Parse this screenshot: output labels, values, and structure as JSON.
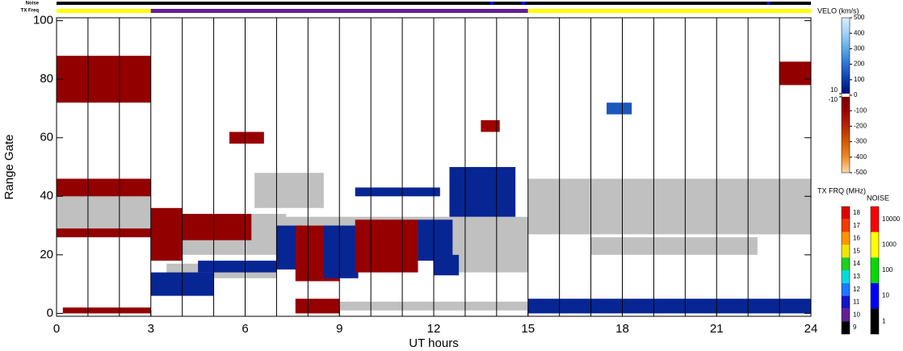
{
  "chart_data": {
    "type": "range-time",
    "xlabel": "UT hours",
    "ylabel": "Range Gate",
    "xlim": [
      0,
      24
    ],
    "xticks": [
      0,
      3,
      6,
      9,
      12,
      15,
      18,
      21,
      24
    ],
    "x_grid_step": 1,
    "ylim": [
      -1,
      101
    ],
    "yticks": [
      0,
      20,
      40,
      60,
      80,
      100
    ],
    "noise_bar": {
      "label": "Noise",
      "segments": [
        {
          "start": 0,
          "end": 24,
          "value": 1
        },
        {
          "start": 13.8,
          "end": 13.9,
          "value": 10
        },
        {
          "start": 14.8,
          "end": 14.9,
          "value": 10
        },
        {
          "start": 22.6,
          "end": 22.7,
          "value": 10
        }
      ]
    },
    "tx_bar": {
      "label": "TX Freq",
      "segments": [
        {
          "start": 0,
          "end": 3,
          "value": 16
        },
        {
          "start": 3,
          "end": 15,
          "value": 10
        },
        {
          "start": 15,
          "end": 24,
          "value": 16
        }
      ]
    },
    "velocity_scale": {
      "title": "VELO (km/s)",
      "ticks": [
        500,
        400,
        300,
        200,
        100,
        0,
        -100,
        -200,
        -300,
        -400,
        -500
      ],
      "inner_ticks": [
        10,
        -10
      ],
      "stops": [
        {
          "value": 500,
          "color": "#dcefff"
        },
        {
          "value": 400,
          "color": "#a3d1f5"
        },
        {
          "value": 300,
          "color": "#5ea9e6"
        },
        {
          "value": 200,
          "color": "#2a72d2"
        },
        {
          "value": 100,
          "color": "#0c3ca8"
        },
        {
          "value": 10,
          "color": "#000a7a"
        },
        {
          "value": 10,
          "color": "#ffffff"
        },
        {
          "value": -10,
          "color": "#ffffff"
        },
        {
          "value": -10,
          "color": "#7a0000"
        },
        {
          "value": -100,
          "color": "#9a0000"
        },
        {
          "value": -200,
          "color": "#b42800"
        },
        {
          "value": -300,
          "color": "#d25a00"
        },
        {
          "value": -400,
          "color": "#ee8c28"
        },
        {
          "value": -500,
          "color": "#fcd9b0"
        }
      ]
    },
    "tx_scale": {
      "title": "TX FRQ (MHz)",
      "ticks": [
        18,
        17,
        16,
        15,
        14,
        13,
        12,
        11,
        10,
        9
      ],
      "colors": [
        "#e00000",
        "#f03c00",
        "#ff9600",
        "#f0e600",
        "#1ed21e",
        "#00dcdc",
        "#1e78ff",
        "#1414c8",
        "#641e96",
        "#000000"
      ]
    },
    "noise_scale": {
      "title": "NOISE",
      "ticks": [
        10000,
        1000,
        100,
        10,
        1
      ],
      "colors": [
        "#ff0000",
        "#ffff00",
        "#00dc00",
        "#0000ff",
        "#000000"
      ]
    },
    "ground_scatter": {
      "color": "#c0c0c0",
      "regions": [
        {
          "x0": 0,
          "x1": 3,
          "g0": 27,
          "g1": 45
        },
        {
          "x0": 3,
          "x1": 7.3,
          "g0": 20,
          "g1": 34
        },
        {
          "x0": 3.5,
          "x1": 7,
          "g0": 12,
          "g1": 17
        },
        {
          "x0": 6.3,
          "x1": 8.5,
          "g0": 36,
          "g1": 48
        },
        {
          "x0": 7,
          "x1": 15,
          "g0": 29,
          "g1": 33
        },
        {
          "x0": 12.5,
          "x1": 15,
          "g0": 14,
          "g1": 30
        },
        {
          "x0": 8.5,
          "x1": 15,
          "g0": 1,
          "g1": 4
        },
        {
          "x0": 15,
          "x1": 24,
          "g0": 27,
          "g1": 46
        },
        {
          "x0": 17,
          "x1": 22.3,
          "g0": 20,
          "g1": 26
        }
      ]
    },
    "velocity": {
      "regions": [
        {
          "x0": 0,
          "x1": 3,
          "g0": 72,
          "g1": 88,
          "v": -80
        },
        {
          "x0": 0,
          "x1": 3,
          "g0": 40,
          "g1": 46,
          "v": -80
        },
        {
          "x0": 0,
          "x1": 3,
          "g0": 26,
          "g1": 29,
          "v": -80
        },
        {
          "x0": 0.2,
          "x1": 3,
          "g0": 0,
          "g1": 2,
          "v": -80
        },
        {
          "x0": 3,
          "x1": 4,
          "g0": 18,
          "g1": 36,
          "v": -80
        },
        {
          "x0": 3,
          "x1": 5,
          "g0": 6,
          "g1": 14,
          "v": 60
        },
        {
          "x0": 3.5,
          "x1": 6.2,
          "g0": 25,
          "g1": 34,
          "v": -80
        },
        {
          "x0": 4.5,
          "x1": 7,
          "g0": 14,
          "g1": 18,
          "v": 60
        },
        {
          "x0": 5.5,
          "x1": 6.6,
          "g0": 58,
          "g1": 62,
          "v": -90
        },
        {
          "x0": 7,
          "x1": 7.8,
          "g0": 15,
          "g1": 30,
          "v": 60
        },
        {
          "x0": 7.6,
          "x1": 9,
          "g0": 11,
          "g1": 30,
          "v": -90
        },
        {
          "x0": 8.5,
          "x1": 9.6,
          "g0": 12,
          "g1": 30,
          "v": 60
        },
        {
          "x0": 9.5,
          "x1": 11.5,
          "g0": 14,
          "g1": 32,
          "v": -90
        },
        {
          "x0": 11.5,
          "x1": 12.6,
          "g0": 18,
          "g1": 32,
          "v": 60
        },
        {
          "x0": 12,
          "x1": 12.8,
          "g0": 13,
          "g1": 20,
          "v": 60
        },
        {
          "x0": 7.6,
          "x1": 9,
          "g0": 0,
          "g1": 5,
          "v": -90
        },
        {
          "x0": 9.5,
          "x1": 12.2,
          "g0": 40,
          "g1": 43,
          "v": 60
        },
        {
          "x0": 12.5,
          "x1": 14.6,
          "g0": 33,
          "g1": 50,
          "v": 60
        },
        {
          "x0": 13.5,
          "x1": 14.1,
          "g0": 62,
          "g1": 66,
          "v": -110
        },
        {
          "x0": 15,
          "x1": 24,
          "g0": 0,
          "g1": 5,
          "v": 60
        },
        {
          "x0": 23,
          "x1": 24,
          "g0": 78,
          "g1": 86,
          "v": -80
        },
        {
          "x0": 17.5,
          "x1": 18.3,
          "g0": 68,
          "g1": 72,
          "v": 150
        }
      ]
    }
  }
}
